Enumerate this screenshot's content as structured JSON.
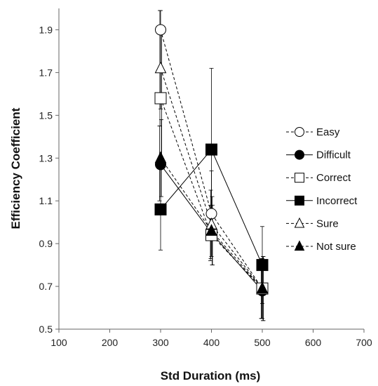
{
  "chart_data": {
    "type": "line",
    "title": "",
    "xlabel": "Std Duration (ms)",
    "ylabel": "Efficiency Coefficient",
    "xlim": [
      100,
      700
    ],
    "ylim": [
      0.5,
      2.0
    ],
    "xticks": [
      100,
      200,
      300,
      400,
      500,
      600,
      700
    ],
    "yticks": [
      0.5,
      0.7,
      0.9,
      1.1,
      1.3,
      1.5,
      1.7,
      1.9
    ],
    "ytick_labels": [
      "0.5",
      "0.7",
      "0.9",
      "1.1",
      "1.3",
      "1.5",
      "1.7",
      "1.9"
    ],
    "x": [
      300,
      400,
      500
    ],
    "grid": false,
    "legend_position": "right",
    "series": [
      {
        "name": "Easy",
        "values": [
          1.9,
          1.04,
          0.69
        ],
        "marker": "circle-open",
        "line": "dashed",
        "err_low": [
          1.53,
          0.84,
          0.55
        ],
        "err_high": [
          1.99,
          1.24,
          0.83
        ]
      },
      {
        "name": "Difficult",
        "values": [
          1.27,
          0.95,
          0.68
        ],
        "marker": "circle-filled",
        "line": "solid",
        "err_low": [
          1.1,
          0.82,
          0.55
        ],
        "err_high": [
          1.45,
          1.08,
          0.82
        ]
      },
      {
        "name": "Correct",
        "values": [
          1.58,
          0.94,
          0.69
        ],
        "marker": "square-open",
        "line": "dashed",
        "err_low": [
          1.25,
          0.8,
          0.54
        ],
        "err_high": [
          1.91,
          1.08,
          0.84
        ]
      },
      {
        "name": "Incorrect",
        "values": [
          1.06,
          1.34,
          0.8
        ],
        "marker": "square-filled",
        "line": "solid",
        "err_low": [
          0.87,
          0.96,
          0.62
        ],
        "err_high": [
          1.25,
          1.72,
          0.98
        ]
      },
      {
        "name": "Sure",
        "values": [
          1.72,
          0.99,
          0.69
        ],
        "marker": "triangle-open",
        "line": "dashed",
        "err_low": [
          1.45,
          0.83,
          0.55
        ],
        "err_high": [
          1.99,
          1.15,
          0.83
        ]
      },
      {
        "name": "Not sure",
        "values": [
          1.3,
          0.96,
          0.69
        ],
        "marker": "triangle-filled",
        "line": "dashed",
        "err_low": [
          1.12,
          0.8,
          0.54
        ],
        "err_high": [
          1.48,
          1.12,
          0.84
        ]
      }
    ]
  }
}
